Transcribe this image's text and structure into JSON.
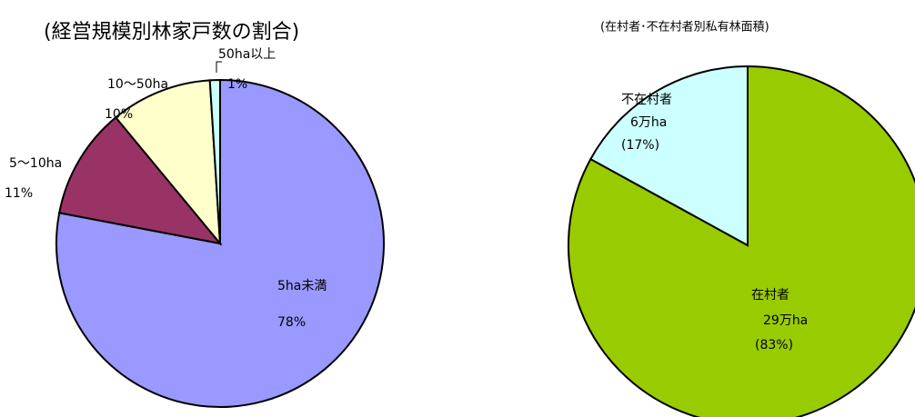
{
  "chart_data": [
    {
      "type": "pie",
      "title": "(経営規模別林家戸数の割合)",
      "categories": [
        "5ha未満",
        "5～10ha",
        "10～50ha",
        "50ha以上"
      ],
      "values": [
        78,
        11,
        10,
        1
      ],
      "value_labels": [
        "78%",
        "11%",
        "10%",
        "1%"
      ],
      "colors": [
        "#9999ff",
        "#993366",
        "#ffffcc",
        "#ccffff"
      ]
    },
    {
      "type": "pie",
      "title": "(在村者･不在村者別私有林面積)",
      "categories": [
        "在村者",
        "不在村者"
      ],
      "values": [
        83,
        17
      ],
      "area_labels": [
        "29万ha",
        "6万ha"
      ],
      "value_labels": [
        "(83%)",
        "(17%)"
      ],
      "colors": [
        "#99cc00",
        "#ccffff"
      ]
    }
  ]
}
